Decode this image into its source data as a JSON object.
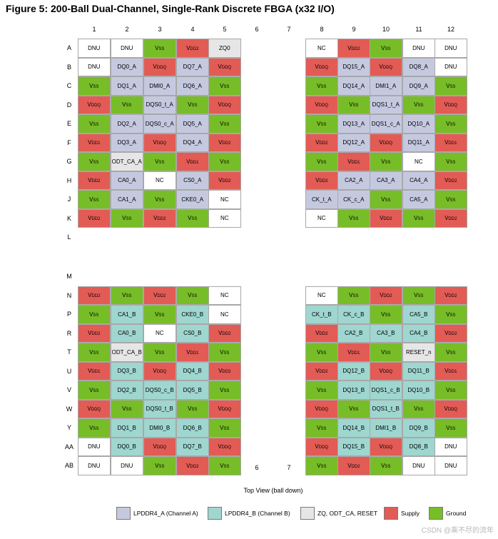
{
  "title": "Figure 5: 200-Ball Dual-Channel, Single-Rank Discrete FBGA (x32 I/O)",
  "columns": [
    "1",
    "2",
    "3",
    "4",
    "5",
    "6",
    "7",
    "8",
    "9",
    "10",
    "11",
    "12"
  ],
  "rows": [
    "A",
    "B",
    "C",
    "D",
    "E",
    "F",
    "G",
    "H",
    "J",
    "K",
    "L",
    "M",
    "N",
    "P",
    "R",
    "T",
    "U",
    "V",
    "W",
    "Y",
    "AA",
    "AB"
  ],
  "colors": {
    "A": "#c5c9e0",
    "B": "#9fd6d0",
    "Z": "#e6e6e6",
    "S": "#e35b55",
    "G": "#77bd27",
    "N": "#ffffff"
  },
  "balls": {
    "A": [
      "DNU|N",
      "DNU|N",
      "VSS|G",
      "VDD2|S",
      "ZQ0|Z",
      "",
      "",
      "NC|N",
      "VDD2|S",
      "VSS|G",
      "DNU|N",
      "DNU|N"
    ],
    "B": [
      "DNU|N",
      "DQ0_A|A",
      "VDDQ|S",
      "DQ7_A|A",
      "VDDQ|S",
      "",
      "",
      "VDDQ|S",
      "DQ15_A|A",
      "VDDQ|S",
      "DQ8_A|A",
      "DNU|N"
    ],
    "C": [
      "VSS|G",
      "DQ1_A|A",
      "DMI0_A|A",
      "DQ6_A|A",
      "VSS|G",
      "",
      "",
      "VSS|G",
      "DQ14_A|A",
      "DMI1_A|A",
      "DQ9_A|A",
      "VSS|G"
    ],
    "D": [
      "VDDQ|S",
      "VSS|G",
      "DQS0_t_A|A",
      "VSS|G",
      "VDDQ|S",
      "",
      "",
      "VDDQ|S",
      "VSS|G",
      "DQS1_t_A|A",
      "VSS|G",
      "VDDQ|S"
    ],
    "E": [
      "VSS|G",
      "DQ2_A|A",
      "DQS0_c_A|A",
      "DQ5_A|A",
      "VSS|G",
      "",
      "",
      "VSS|G",
      "DQ13_A|A",
      "DQS1_c_A|A",
      "DQ10_A|A",
      "VSS|G"
    ],
    "F": [
      "VDD1|S",
      "DQ3_A|A",
      "VDDQ|S",
      "DQ4_A|A",
      "VDD2|S",
      "",
      "",
      "VDD2|S",
      "DQ12_A|A",
      "VDDQ|S",
      "DQ11_A|A",
      "VDD1|S"
    ],
    "G": [
      "VSS|G",
      "ODT_CA_A|Z",
      "VSS|G",
      "VDD1|S",
      "VSS|G",
      "",
      "",
      "VSS|G",
      "VDD1|S",
      "VSS|G",
      "NC|N",
      "VSS|G"
    ],
    "H": [
      "VDD2|S",
      "CA0_A|A",
      "NC|N",
      "CS0_A|A",
      "VDD2|S",
      "",
      "",
      "VDD2|S",
      "CA2_A|A",
      "CA3_A|A",
      "CA4_A|A",
      "VDD2|S"
    ],
    "J": [
      "VSS|G",
      "CA1_A|A",
      "VSS|G",
      "CKE0_A|A",
      "NC|N",
      "",
      "",
      "CK_t_A|A",
      "CK_c_A|A",
      "VSS|G",
      "CA5_A|A",
      "VSS|G"
    ],
    "K": [
      "VDD2|S",
      "VSS|G",
      "VDD2|S",
      "VSS|G",
      "NC|N",
      "",
      "",
      "NC|N",
      "VSS|G",
      "VDD2|S",
      "VSS|G",
      "VDD2|S"
    ],
    "L": [
      "",
      "",
      "",
      "",
      "",
      "",
      "",
      "",
      "",
      "",
      "",
      ""
    ],
    "M": [
      "",
      "",
      "",
      "",
      "",
      "",
      "",
      "",
      "",
      "",
      "",
      ""
    ],
    "N": [
      "VDD2|S",
      "VSS|G",
      "VDD2|S",
      "VSS|G",
      "NC|N",
      "",
      "",
      "NC|N",
      "VSS|G",
      "VDD2|S",
      "VSS|G",
      "VDD2|S"
    ],
    "P": [
      "VSS|G",
      "CA1_B|B",
      "VSS|G",
      "CKE0_B|B",
      "NC|N",
      "",
      "",
      "CK_t_B|B",
      "CK_c_B|B",
      "VSS|G",
      "CA5_B|B",
      "VSS|G"
    ],
    "R": [
      "VDD2|S",
      "CA0_B|B",
      "NC|N",
      "CS0_B|B",
      "VDD2|S",
      "",
      "",
      "VDD2|S",
      "CA2_B|B",
      "CA3_B|B",
      "CA4_B|B",
      "VDD2|S"
    ],
    "T": [
      "VSS|G",
      "ODT_CA_B|Z",
      "VSS|G",
      "VDD1|S",
      "VSS|G",
      "",
      "",
      "VSS|G",
      "VDD1|S",
      "VSS|G",
      "RESET_n|Z",
      "VSS|G"
    ],
    "U": [
      "VDD1|S",
      "DQ3_B|B",
      "VDDQ|S",
      "DQ4_B|B",
      "VDD2|S",
      "",
      "",
      "VDD2|S",
      "DQ12_B|B",
      "VDDQ|S",
      "DQ11_B|B",
      "VDD1|S"
    ],
    "V": [
      "VSS|G",
      "DQ2_B|B",
      "DQS0_c_B|B",
      "DQ5_B|B",
      "VSS|G",
      "",
      "",
      "VSS|G",
      "DQ13_B|B",
      "DQS1_c_B|B",
      "DQ10_B|B",
      "VSS|G"
    ],
    "W": [
      "VDDQ|S",
      "VSS|G",
      "DQS0_t_B|B",
      "VSS|G",
      "VDDQ|S",
      "",
      "",
      "VDDQ|S",
      "VSS|G",
      "DQS1_t_B|B",
      "VSS|G",
      "VDDQ|S"
    ],
    "Y": [
      "VSS|G",
      "DQ1_B|B",
      "DMI0_B|B",
      "DQ6_B|B",
      "VSS|G",
      "",
      "",
      "VSS|G",
      "DQ14_B|B",
      "DMI1_B|B",
      "DQ9_B|B",
      "VSS|G"
    ],
    "AA": [
      "DNU|N",
      "DQ0_B|B",
      "VDDQ|S",
      "DQ7_B|B",
      "VDDQ|S",
      "",
      "",
      "VDDQ|S",
      "DQ15_B|B",
      "VDDQ|S",
      "DQ8_B|B",
      "DNU|N"
    ],
    "AB": [
      "DNU|N",
      "DNU|N",
      "VSS|G",
      "VDD2|S",
      "VSS|G",
      "",
      "",
      "VSS|G",
      "VDD2|S",
      "VSS|G",
      "DNU|N",
      "DNU|N"
    ]
  },
  "top_view_label": "Top View (ball down)",
  "legend": [
    {
      "label": "LPDDR4_A (Channel A)",
      "color": "#c5c9e0"
    },
    {
      "label": "LPDDR4_B (Channel B)",
      "color": "#9fd6d0"
    },
    {
      "label": "ZQ, ODT_CA, RESET",
      "color": "#e6e6e6"
    },
    {
      "label": "Supply",
      "color": "#e35b55"
    },
    {
      "label": "Ground",
      "color": "#77bd27"
    }
  ],
  "watermark": "CSDN @乘不尽的流年"
}
